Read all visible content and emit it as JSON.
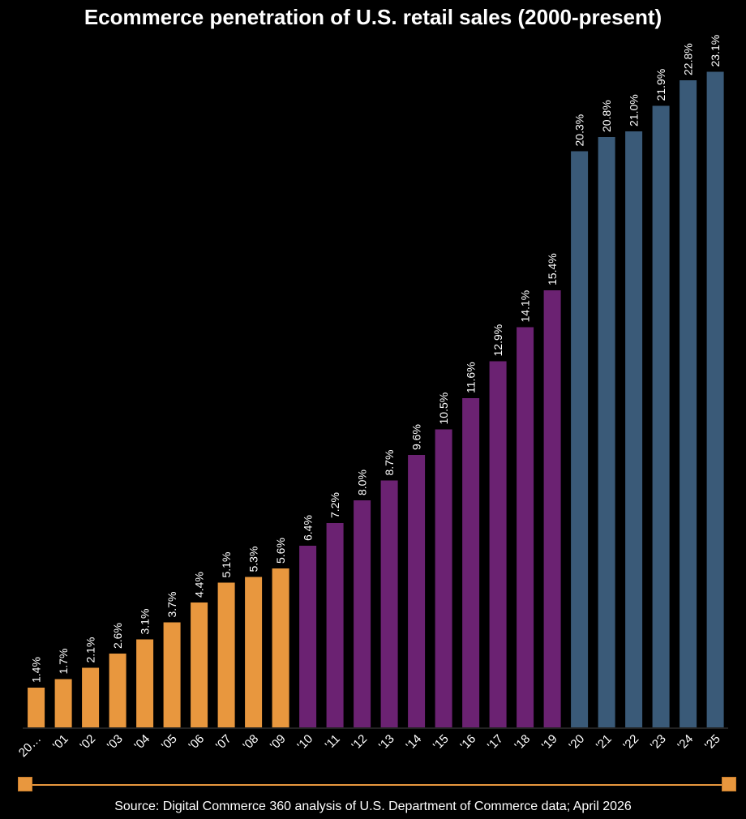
{
  "chart_data": {
    "type": "bar",
    "title": "Ecommerce penetration of U.S. retail sales (2000-present)",
    "xlabel": "",
    "ylabel": "",
    "ylim": [
      0,
      25
    ],
    "grid": false,
    "categories": [
      "20…",
      "'01",
      "'02",
      "'03",
      "'04",
      "'05",
      "'06",
      "'07",
      "'08",
      "'09",
      "'10",
      "'11",
      "'12",
      "'13",
      "'14",
      "'15",
      "'16",
      "'17",
      "'18",
      "'19",
      "'20",
      "'21",
      "'22",
      "'23",
      "'24",
      "'25"
    ],
    "values": [
      1.4,
      1.7,
      2.1,
      2.6,
      3.1,
      3.7,
      4.4,
      5.1,
      5.3,
      5.6,
      6.4,
      7.2,
      8.0,
      8.7,
      9.6,
      10.5,
      11.6,
      12.9,
      14.1,
      15.4,
      20.3,
      20.8,
      21.0,
      21.9,
      22.8,
      23.1
    ],
    "data_labels": [
      "1.4%",
      "1.7%",
      "2.1%",
      "2.6%",
      "3.1%",
      "3.7%",
      "4.4%",
      "5.1%",
      "5.3%",
      "5.6%",
      "6.4%",
      "7.2%",
      "8.0%",
      "8.7%",
      "9.6%",
      "10.5%",
      "11.6%",
      "12.9%",
      "14.1%",
      "15.4%",
      "20.3%",
      "20.8%",
      "21.0%",
      "21.9%",
      "22.8%",
      "23.1%"
    ],
    "bar_colors": [
      "#e8973e",
      "#e8973e",
      "#e8973e",
      "#e8973e",
      "#e8973e",
      "#e8973e",
      "#e8973e",
      "#e8973e",
      "#e8973e",
      "#e8973e",
      "#6b2272",
      "#6b2272",
      "#6b2272",
      "#6b2272",
      "#6b2272",
      "#6b2272",
      "#6b2272",
      "#6b2272",
      "#6b2272",
      "#6b2272",
      "#3a5a78",
      "#3a5a78",
      "#3a5a78",
      "#3a5a78",
      "#3a5a78",
      "#3a5a78"
    ],
    "source": "Source: Digital Commerce 360 analysis of U.S. Department of Commerce data; April 2026"
  },
  "range_slider": {
    "color": "#e8973e",
    "start_fraction": 0,
    "end_fraction": 1
  }
}
